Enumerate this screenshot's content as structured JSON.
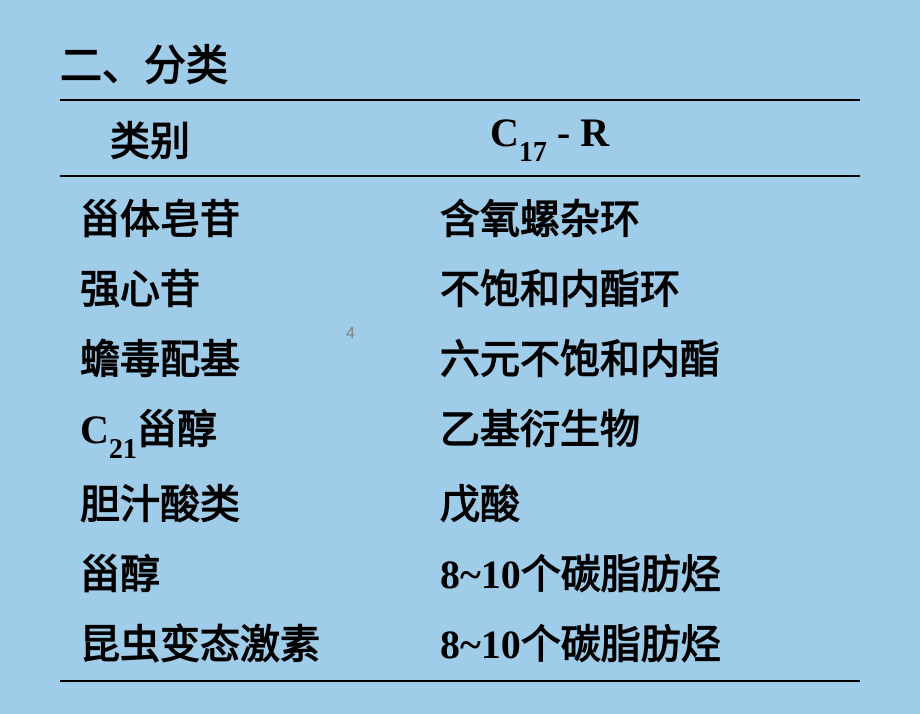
{
  "background_color": "#9fcce9",
  "text_color": "#000000",
  "border_color": "#000000",
  "title": "二、分类",
  "title_fontsize": 42,
  "header": {
    "col1": "类别",
    "col2_prefix": "C",
    "col2_sub": "17",
    "col2_suffix": " - R"
  },
  "body_fontsize": 40,
  "rows": [
    {
      "category": "甾体皂苷",
      "c17r": "含氧螺杂环",
      "has_sub": false
    },
    {
      "category": "强心苷",
      "c17r": "不饱和内酯环",
      "has_sub": false
    },
    {
      "category": "蟾毒配基",
      "c17r": "六元不饱和内酯",
      "has_sub": false
    },
    {
      "category_prefix": "C",
      "category_sub": "21",
      "category_suffix": "甾醇",
      "c17r": "乙基衍生物",
      "has_sub": true
    },
    {
      "category": "胆汁酸类",
      "c17r": "戊酸",
      "has_sub": false
    },
    {
      "category": "甾醇",
      "c17r_prefix": "8~10",
      "c17r_suffix": "个碳脂肪烃",
      "has_sub": false,
      "c17r_mixed": true
    },
    {
      "category": "昆虫变态激素",
      "c17r_prefix": "8~10",
      "c17r_suffix": "个碳脂肪烃",
      "has_sub": false,
      "c17r_mixed": true
    }
  ],
  "page_number": "4"
}
